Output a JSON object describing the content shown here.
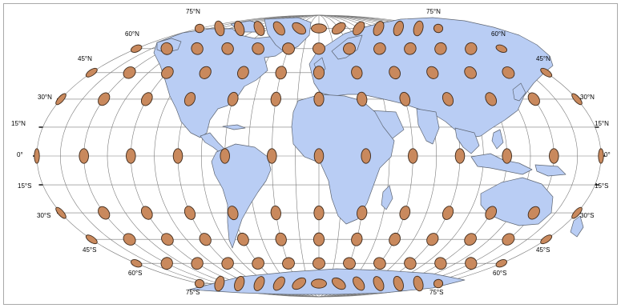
{
  "map": {
    "projection": "Mollweide",
    "colors": {
      "land": "#b9cdf4",
      "land_border": "#5d6572",
      "graticule": "#7a7a7a",
      "indicatrix_fill": "#c9895d",
      "indicatrix_stroke": "#3d2a1c",
      "background": "#ffffff"
    },
    "graticule_interval_deg": {
      "lat": 15,
      "lon": 15
    },
    "indicatrix_interval_deg": {
      "lat": 30,
      "lon": 30
    },
    "labels": {
      "lat_0": "0°",
      "lat_15n": "15°N",
      "lat_30n": "30°N",
      "lat_45n": "45°N",
      "lat_60n": "60°N",
      "lat_75n": "75°N",
      "lat_15s": "15°S",
      "lat_30s": "30°S",
      "lat_45s": "45°S",
      "lat_60s": "60°S",
      "lat_75s": "75°S"
    }
  }
}
